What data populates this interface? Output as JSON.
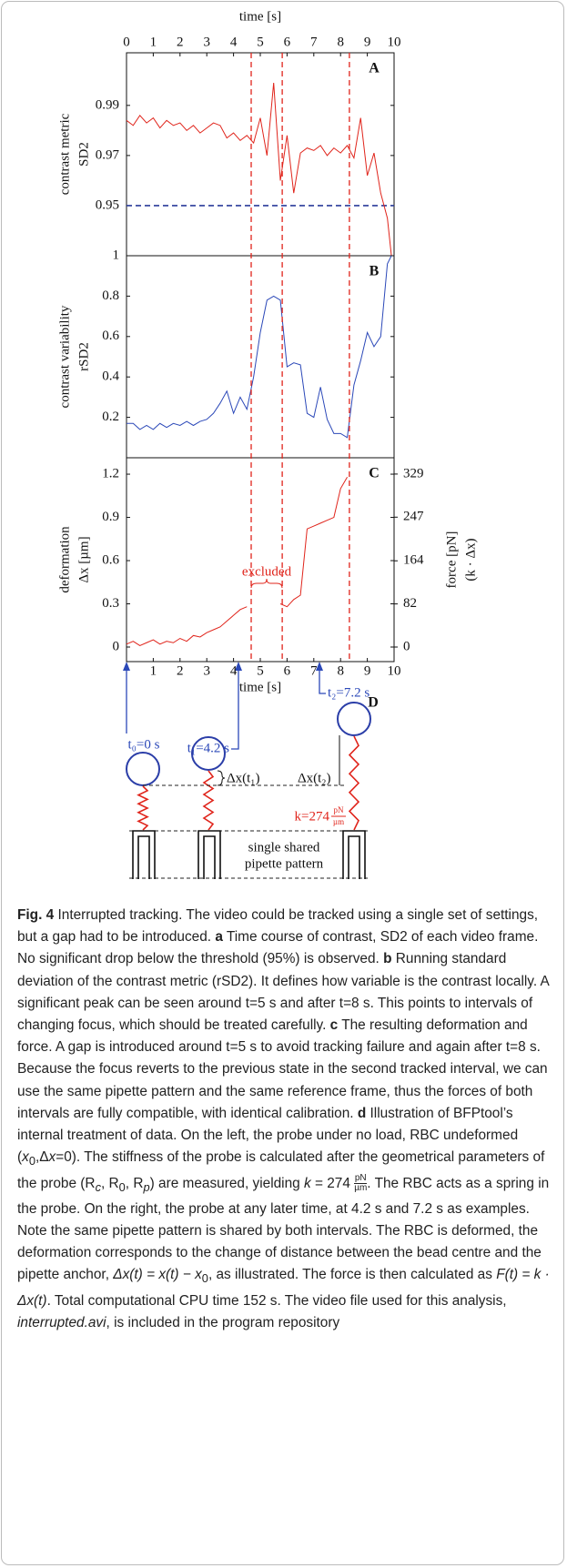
{
  "chart_data": [
    {
      "type": "line",
      "panel": "A",
      "xlabel": "time [s]",
      "ylabel": [
        "contrast metric",
        "SD2"
      ],
      "xlim": [
        0,
        10
      ],
      "xticks": [
        0,
        1,
        2,
        3,
        4,
        5,
        6,
        7,
        8,
        9,
        10
      ],
      "ylim": [
        0.93,
        1.011
      ],
      "yticks": [
        0.95,
        0.97,
        0.99
      ],
      "threshold": 0.95,
      "threshold_color": "#2a3b9a",
      "series": [
        {
          "color": "#e0241b",
          "x": [
            0,
            0.25,
            0.5,
            0.75,
            1,
            1.25,
            1.5,
            1.75,
            2,
            2.25,
            2.5,
            2.75,
            3,
            3.25,
            3.5,
            3.75,
            4,
            4.25,
            4.5,
            4.75,
            5,
            5.25,
            5.5,
            5.75,
            6,
            6.25,
            6.5,
            6.75,
            7,
            7.25,
            7.5,
            7.75,
            8,
            8.25,
            8.5,
            8.75,
            9,
            9.25,
            9.5,
            9.75,
            9.9
          ],
          "values": [
            0.984,
            0.982,
            0.986,
            0.983,
            0.985,
            0.981,
            0.984,
            0.982,
            0.983,
            0.98,
            0.982,
            0.979,
            0.981,
            0.983,
            0.982,
            0.977,
            0.979,
            0.976,
            0.978,
            0.975,
            0.985,
            0.97,
            0.999,
            0.96,
            0.978,
            0.955,
            0.971,
            0.973,
            0.972,
            0.974,
            0.97,
            0.973,
            0.971,
            0.974,
            0.969,
            0.985,
            0.962,
            0.971,
            0.955,
            0.945,
            0.93
          ]
        }
      ]
    },
    {
      "type": "line",
      "panel": "B",
      "ylabel": [
        "contrast variability",
        "rSD2"
      ],
      "xlim": [
        0,
        10
      ],
      "ylim": [
        0,
        1
      ],
      "yticks": [
        0.2,
        0.4,
        0.6,
        0.8,
        1
      ],
      "series": [
        {
          "color": "#2b48b8",
          "x": [
            0,
            0.25,
            0.5,
            0.75,
            1,
            1.25,
            1.5,
            1.75,
            2,
            2.25,
            2.5,
            2.75,
            3,
            3.25,
            3.5,
            3.75,
            4,
            4.25,
            4.5,
            4.75,
            5,
            5.25,
            5.5,
            5.75,
            6,
            6.25,
            6.5,
            6.75,
            7,
            7.25,
            7.5,
            7.75,
            8,
            8.25,
            8.5,
            8.75,
            9,
            9.25,
            9.5,
            9.75,
            9.9
          ],
          "values": [
            0.17,
            0.17,
            0.14,
            0.16,
            0.14,
            0.17,
            0.15,
            0.17,
            0.16,
            0.18,
            0.16,
            0.18,
            0.19,
            0.22,
            0.27,
            0.33,
            0.22,
            0.3,
            0.24,
            0.4,
            0.62,
            0.78,
            0.8,
            0.78,
            0.45,
            0.47,
            0.46,
            0.22,
            0.2,
            0.35,
            0.19,
            0.12,
            0.12,
            0.1,
            0.36,
            0.48,
            0.62,
            0.55,
            0.6,
            0.96,
            1.0
          ]
        }
      ]
    },
    {
      "type": "line",
      "panel": "C",
      "xlabel": "time [s]",
      "ylabel": [
        "deformation",
        "Δx [µm]"
      ],
      "y2label": [
        "force [pN]",
        "(k · Δx)"
      ],
      "annotation": "excluded",
      "xlim": [
        0,
        10
      ],
      "xticks": [
        1,
        2,
        3,
        4,
        5,
        6,
        7,
        8,
        9,
        10
      ],
      "ylim": [
        -0.101,
        1.314
      ],
      "yticks": [
        0,
        0.3,
        0.6,
        0.9,
        1.2
      ],
      "y2lim": [
        -27.7,
        360
      ],
      "y2ticks": [
        0,
        82,
        164,
        247,
        329
      ],
      "series": [
        {
          "color": "#e0241b",
          "x": [
            0,
            0.25,
            0.5,
            0.75,
            1,
            1.25,
            1.5,
            1.75,
            2,
            2.25,
            2.5,
            2.75,
            3,
            3.25,
            3.5,
            3.75,
            4,
            4.25,
            4.5,
            4.75,
            5,
            5.25,
            5.5,
            5.75,
            6,
            6.25,
            6.5,
            6.75,
            7,
            7.25,
            7.5,
            7.75,
            8,
            8.25,
            8.5,
            8.75,
            9,
            9.25,
            9.5,
            9.75,
            9.9
          ],
          "values": [
            0.02,
            0.04,
            0.01,
            0.03,
            0.05,
            0.02,
            0.04,
            0.03,
            0.06,
            0.04,
            0.08,
            0.07,
            0.1,
            0.12,
            0.14,
            0.18,
            0.22,
            0.26,
            0.28,
            null,
            null,
            null,
            null,
            0.3,
            0.28,
            0.33,
            0.36,
            0.82,
            0.84,
            0.86,
            0.88,
            0.9,
            1.1,
            1.18,
            null,
            null,
            null,
            null,
            null,
            null,
            null
          ]
        }
      ]
    }
  ],
  "markers_x": [
    4.66,
    5.82,
    8.33
  ],
  "diagram": {
    "panel": "D",
    "t0": "t₀=0 s",
    "t1": "t₁=4.2 s",
    "t2": "t₂=7.2 s",
    "dx1": "Δx(t₁)",
    "dx2": "Δx(t₂)",
    "k": "k=274",
    "k_unit_num": "pN",
    "k_unit_den": "µm",
    "pattern": [
      "single shared",
      "pipette pattern"
    ]
  },
  "caption": [
    "Fig. 4",
    " Interrupted tracking. The video could be tracked using a single set of settings, but a gap had to be introduced. ",
    "a",
    " Time course of contrast, SD2 of each video frame. No significant drop below the threshold (95%) is observed. ",
    "b",
    " Running standard deviation of the contrast metric (rSD2). It defines how variable is the contrast locally. A significant peak can be seen around t=5 s and after t=8 s. This points to intervals of changing focus, which should be treated carefully. ",
    "c",
    " The resulting deformation and force. A gap is introduced around t=5 s to avoid tracking failure and again after t=8 s. Because the focus reverts to the previous state in the second tracked interval, we can use the same pipette pattern and the same reference frame, thus the forces of both intervals are fully compatible, with identical calibration. ",
    "d",
    " Illustration of BFPtool’s internal treatment of data. On the left, the probe under no load, RBC undeformed (",
    "x",
    "0",
    ",Δ",
    "x",
    "=0). The stiffness of the probe is calculated after the geometrical parameters of the probe (R",
    "c",
    ", R",
    "0",
    ", R",
    "p",
    ") are measured, yielding ",
    "k",
    " = 274 ",
    "pN",
    "µm",
    ". The RBC acts as a spring in the probe. On the right, the probe at any later time, at 4.2 s and 7.2 s as examples. Note the same pipette pattern is shared by both intervals. The RBC is deformed, the deformation corresponds to the change of distance between the bead centre and the pipette anchor, ",
    "Δx(t) = x(t) − x",
    "0",
    ", as illustrated. The force is then calculated as ",
    "F(t) = k · Δx(t)",
    ". Total computational CPU time 152 s. The video file used for this analysis, ",
    "interrupted.avi",
    ", is included in the program repository"
  ]
}
